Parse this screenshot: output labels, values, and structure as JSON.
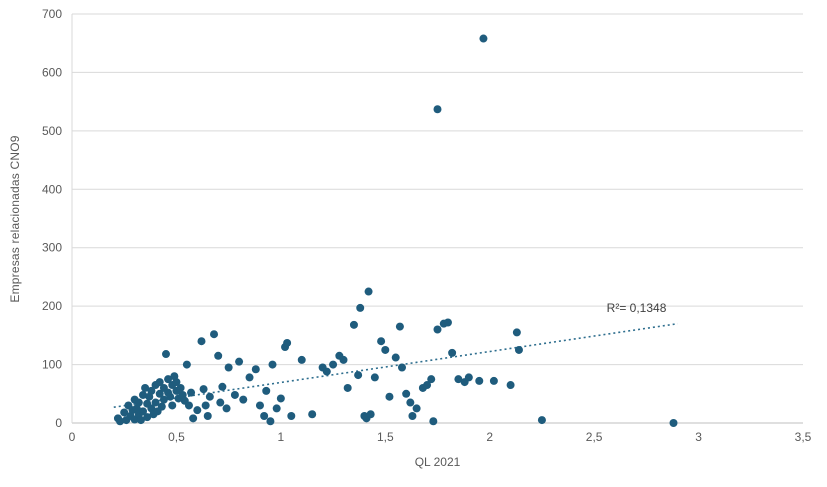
{
  "chart_data": {
    "type": "scatter",
    "title": "",
    "xlabel": "QL 2021",
    "ylabel": "Empresas relacionadas CNO9",
    "xlim": [
      0,
      3.5
    ],
    "ylim": [
      0,
      700
    ],
    "x_ticks": [
      0,
      0.5,
      1,
      1.5,
      2,
      2.5,
      3,
      3.5
    ],
    "x_tick_labels": [
      "0",
      "0,5",
      "1",
      "1,5",
      "2",
      "2,5",
      "3",
      "3,5"
    ],
    "y_ticks": [
      0,
      100,
      200,
      300,
      400,
      500,
      600,
      700
    ],
    "y_tick_labels": [
      "0",
      "100",
      "200",
      "300",
      "400",
      "500",
      "600",
      "700"
    ],
    "grid": "horizontal",
    "grid_color": "#d9d9d9",
    "axis_color": "#bfbfbf",
    "point_color": "#1F5C7D",
    "trend_color": "#2E6E8E",
    "points": [
      [
        0.22,
        8
      ],
      [
        0.23,
        3
      ],
      [
        0.25,
        18
      ],
      [
        0.26,
        5
      ],
      [
        0.27,
        30
      ],
      [
        0.28,
        12
      ],
      [
        0.29,
        22
      ],
      [
        0.3,
        40
      ],
      [
        0.3,
        6
      ],
      [
        0.31,
        25
      ],
      [
        0.32,
        15
      ],
      [
        0.32,
        35
      ],
      [
        0.33,
        5
      ],
      [
        0.34,
        48
      ],
      [
        0.34,
        20
      ],
      [
        0.35,
        60
      ],
      [
        0.36,
        33
      ],
      [
        0.36,
        10
      ],
      [
        0.37,
        45
      ],
      [
        0.38,
        55
      ],
      [
        0.38,
        25
      ],
      [
        0.39,
        15
      ],
      [
        0.4,
        65
      ],
      [
        0.4,
        35
      ],
      [
        0.41,
        20
      ],
      [
        0.42,
        70
      ],
      [
        0.42,
        50
      ],
      [
        0.43,
        28
      ],
      [
        0.44,
        60
      ],
      [
        0.44,
        40
      ],
      [
        0.45,
        118
      ],
      [
        0.46,
        75
      ],
      [
        0.46,
        52
      ],
      [
        0.47,
        45
      ],
      [
        0.48,
        65
      ],
      [
        0.48,
        30
      ],
      [
        0.49,
        80
      ],
      [
        0.5,
        55
      ],
      [
        0.5,
        70
      ],
      [
        0.51,
        42
      ],
      [
        0.52,
        60
      ],
      [
        0.53,
        48
      ],
      [
        0.54,
        38
      ],
      [
        0.55,
        100
      ],
      [
        0.56,
        30
      ],
      [
        0.57,
        52
      ],
      [
        0.58,
        8
      ],
      [
        0.6,
        22
      ],
      [
        0.62,
        140
      ],
      [
        0.63,
        58
      ],
      [
        0.64,
        30
      ],
      [
        0.65,
        12
      ],
      [
        0.66,
        45
      ],
      [
        0.68,
        152
      ],
      [
        0.7,
        115
      ],
      [
        0.71,
        35
      ],
      [
        0.72,
        62
      ],
      [
        0.74,
        25
      ],
      [
        0.75,
        95
      ],
      [
        0.78,
        48
      ],
      [
        0.8,
        105
      ],
      [
        0.82,
        40
      ],
      [
        0.85,
        78
      ],
      [
        0.88,
        92
      ],
      [
        0.9,
        30
      ],
      [
        0.92,
        12
      ],
      [
        0.93,
        55
      ],
      [
        0.95,
        3
      ],
      [
        0.96,
        100
      ],
      [
        0.98,
        25
      ],
      [
        1.0,
        42
      ],
      [
        1.02,
        130
      ],
      [
        1.03,
        137
      ],
      [
        1.05,
        12
      ],
      [
        1.1,
        108
      ],
      [
        1.15,
        15
      ],
      [
        1.2,
        95
      ],
      [
        1.22,
        88
      ],
      [
        1.25,
        100
      ],
      [
        1.28,
        115
      ],
      [
        1.3,
        108
      ],
      [
        1.32,
        60
      ],
      [
        1.35,
        168
      ],
      [
        1.37,
        82
      ],
      [
        1.38,
        197
      ],
      [
        1.4,
        12
      ],
      [
        1.41,
        8
      ],
      [
        1.42,
        225
      ],
      [
        1.43,
        15
      ],
      [
        1.45,
        78
      ],
      [
        1.48,
        140
      ],
      [
        1.5,
        125
      ],
      [
        1.52,
        45
      ],
      [
        1.55,
        112
      ],
      [
        1.57,
        165
      ],
      [
        1.58,
        95
      ],
      [
        1.6,
        50
      ],
      [
        1.62,
        35
      ],
      [
        1.63,
        12
      ],
      [
        1.65,
        25
      ],
      [
        1.68,
        60
      ],
      [
        1.7,
        65
      ],
      [
        1.72,
        75
      ],
      [
        1.73,
        3
      ],
      [
        1.75,
        160
      ],
      [
        1.75,
        537
      ],
      [
        1.78,
        170
      ],
      [
        1.8,
        172
      ],
      [
        1.82,
        120
      ],
      [
        1.85,
        75
      ],
      [
        1.88,
        70
      ],
      [
        1.9,
        78
      ],
      [
        1.95,
        72
      ],
      [
        1.97,
        658
      ],
      [
        2.02,
        72
      ],
      [
        2.1,
        65
      ],
      [
        2.13,
        155
      ],
      [
        2.14,
        125
      ],
      [
        2.25,
        5
      ],
      [
        2.88,
        0
      ]
    ],
    "trendline": {
      "style": "dotted",
      "x_start": 0.2,
      "y_start": 27,
      "x_end": 2.9,
      "y_end": 170,
      "label": "R²= 0,1348",
      "label_x": 2.56,
      "label_y": 190
    },
    "legend": "none"
  }
}
